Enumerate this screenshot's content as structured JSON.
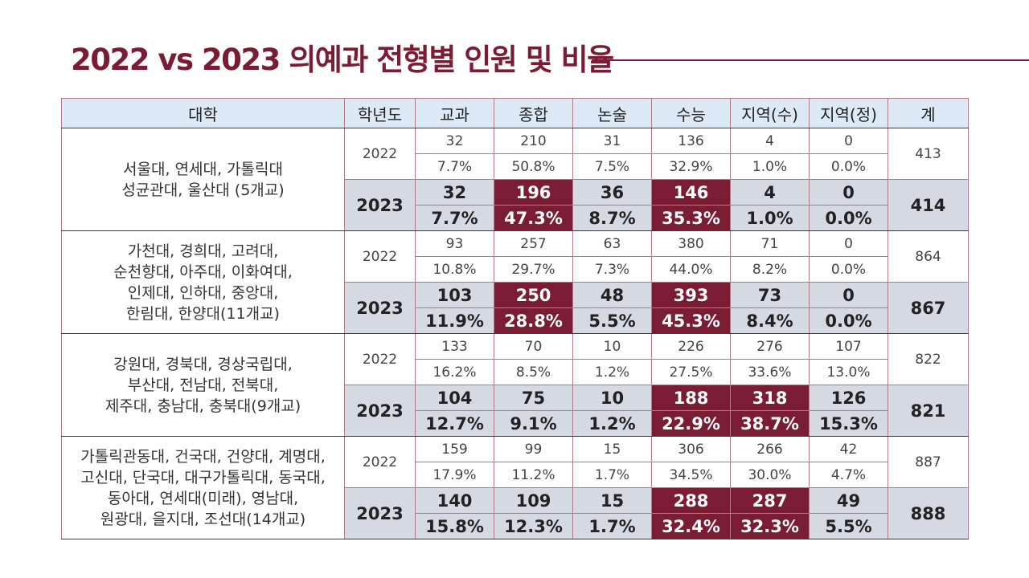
{
  "title": "2022 vs 2023  의예과 전형별 인원 및 비율",
  "columns": [
    "대학",
    "학년도",
    "교과",
    "종합",
    "논술",
    "수능",
    "지역(수)",
    "지역(정)",
    "계"
  ],
  "groups": [
    {
      "univ_lines": [
        "서울대, 연세대, 가톨릭대",
        "성균관대, 울산대 (5개교)"
      ],
      "y2022": "2022",
      "count2022": [
        "32",
        "210",
        "31",
        "136",
        "4",
        "0"
      ],
      "pct2022": [
        "7.7%",
        "50.8%",
        "7.5%",
        "32.9%",
        "1.0%",
        "0.0%"
      ],
      "total2022": "413",
      "y2023": "2023",
      "count2023": [
        "32",
        "196",
        "36",
        "146",
        "4",
        "0"
      ],
      "pct2023": [
        "7.7%",
        "47.3%",
        "8.7%",
        "35.3%",
        "1.0%",
        "0.0%"
      ],
      "total2023": "414"
    },
    {
      "univ_lines": [
        "가천대, 경희대, 고려대,",
        "순천향대, 아주대, 이화여대,",
        "인제대, 인하대, 중앙대,",
        "한림대, 한양대(11개교)"
      ],
      "y2022": "2022",
      "count2022": [
        "93",
        "257",
        "63",
        "380",
        "71",
        "0"
      ],
      "pct2022": [
        "10.8%",
        "29.7%",
        "7.3%",
        "44.0%",
        "8.2%",
        "0.0%"
      ],
      "total2022": "864",
      "y2023": "2023",
      "count2023": [
        "103",
        "250",
        "48",
        "393",
        "73",
        "0"
      ],
      "pct2023": [
        "11.9%",
        "28.8%",
        "5.5%",
        "45.3%",
        "8.4%",
        "0.0%"
      ],
      "total2023": "867"
    },
    {
      "univ_lines": [
        "강원대, 경북대, 경상국립대,",
        "부산대, 전남대, 전북대,",
        "제주대, 충남대, 충북대(9개교)"
      ],
      "y2022": "2022",
      "count2022": [
        "133",
        "70",
        "10",
        "226",
        "276",
        "107"
      ],
      "pct2022": [
        "16.2%",
        "8.5%",
        "1.2%",
        "27.5%",
        "33.6%",
        "13.0%"
      ],
      "total2022": "822",
      "y2023": "2023",
      "count2023": [
        "104",
        "75",
        "10",
        "188",
        "318",
        "126"
      ],
      "pct2023": [
        "12.7%",
        "9.1%",
        "1.2%",
        "22.9%",
        "38.7%",
        "15.3%"
      ],
      "total2023": "821"
    },
    {
      "univ_lines": [
        "가톨릭관동대, 건국대, 건양대, 계명대,",
        "고신대, 단국대, 대구가톨릭대, 동국대,",
        "동아대, 연세대(미래), 영남대,",
        "원광대, 을지대, 조선대(14개교)"
      ],
      "y2022": "2022",
      "count2022": [
        "159",
        "99",
        "15",
        "306",
        "266",
        "42"
      ],
      "pct2022": [
        "17.9%",
        "11.2%",
        "1.7%",
        "34.5%",
        "30.0%",
        "4.7%"
      ],
      "total2022": "887",
      "y2023": "2023",
      "count2023": [
        "140",
        "109",
        "15",
        "288",
        "287",
        "49"
      ],
      "pct2023": [
        "15.8%",
        "12.3%",
        "1.7%",
        "32.4%",
        "32.3%",
        "5.5%"
      ],
      "total2023": "888"
    }
  ],
  "colors": {
    "accent": "#7b1c35",
    "header_bg": "#dde9f6",
    "row2023_bg": "#d5d9e2",
    "highlight_bg": "#7b1c35"
  }
}
